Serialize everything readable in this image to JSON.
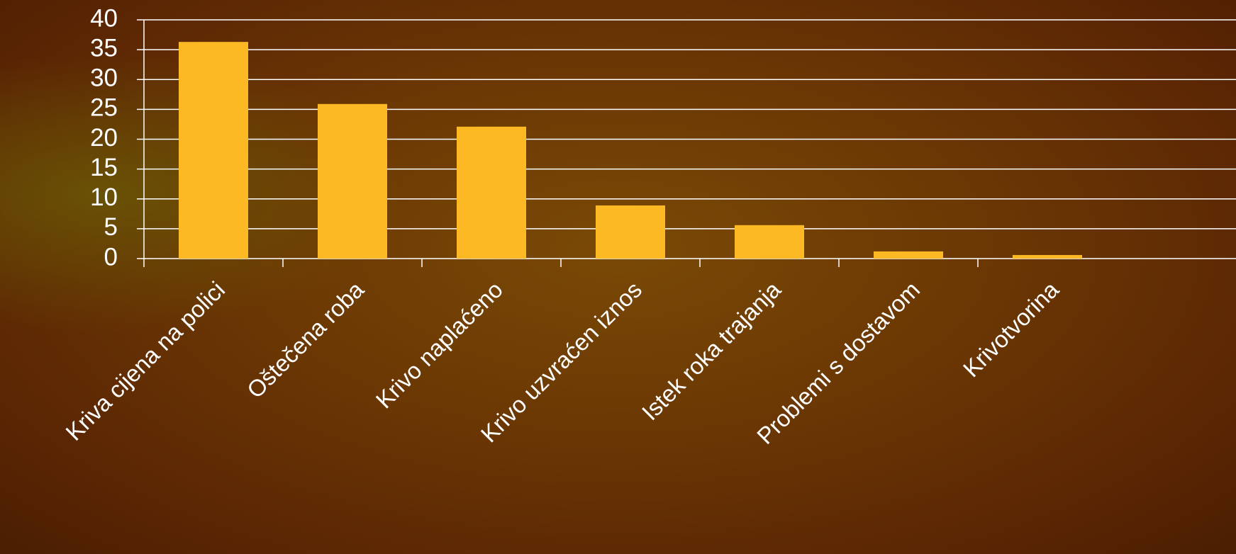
{
  "chart_data": {
    "type": "bar",
    "categories": [
      "Kriva cijena na polici",
      "Oštečena roba",
      "Krivo naplaćeno",
      "Krivo uzvraćen iznos",
      "Istek roka trajanja",
      "Problemi s dostavom",
      "Krivotvorina"
    ],
    "values": [
      36.3,
      25.9,
      22.1,
      8.9,
      5.6,
      1.2,
      0.6
    ],
    "color": "#fdb924",
    "ylim": [
      0,
      40
    ],
    "yticks": [
      0,
      5,
      10,
      15,
      20,
      25,
      30,
      35,
      40
    ],
    "grid": true
  }
}
